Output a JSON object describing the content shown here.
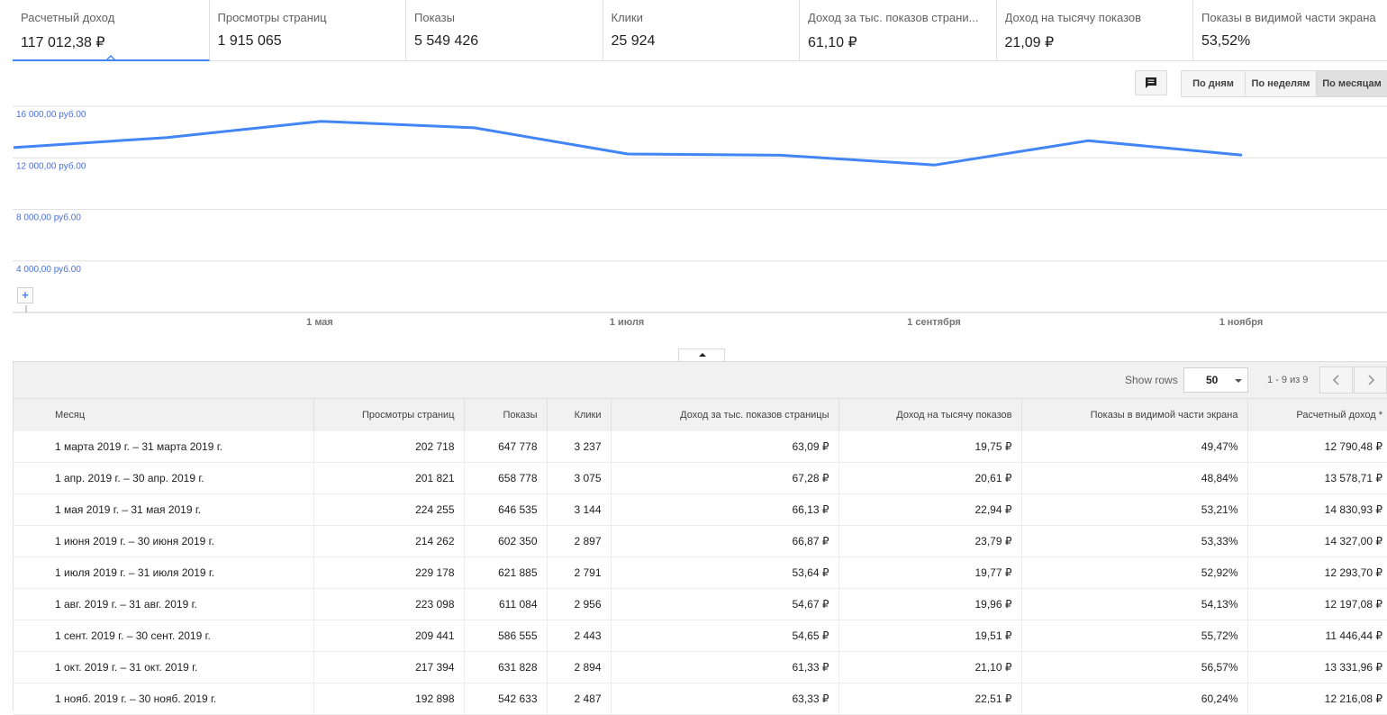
{
  "metrics": [
    {
      "label": "Расчетный доход",
      "value": "117 012,38 ₽",
      "active": true
    },
    {
      "label": "Просмотры страниц",
      "value": "1 915 065"
    },
    {
      "label": "Показы",
      "value": "5 549 426"
    },
    {
      "label": "Клики",
      "value": "25 924"
    },
    {
      "label": "Доход за тыс. показов страни...",
      "value": "61,10 ₽"
    },
    {
      "label": "Доход на тысячу показов",
      "value": "21,09 ₽"
    },
    {
      "label": "Показы в видимой части экрана",
      "value": "53,52%"
    }
  ],
  "controls": {
    "annotation_icon": "comment-icon",
    "period_options": [
      "По дням",
      "По неделям",
      "По месяцам"
    ],
    "selected_period": "По месяцам",
    "zoom_label": "+"
  },
  "chart_data": {
    "type": "line",
    "title": "",
    "xlabel": "",
    "ylabel": "",
    "series_color": "#4285f4",
    "x_labels": [
      "1 мая",
      "1 июля",
      "1 сентября",
      "1 ноября"
    ],
    "y_ticks": [
      "16 000,00 руб.00",
      "12 000,00 руб.00",
      "8 000,00 руб.00",
      "4 000,00 руб.00"
    ],
    "y_tick_values": [
      16000,
      12000,
      8000,
      4000
    ],
    "ylim": [
      0,
      16000
    ],
    "x": [
      "2019-03",
      "2019-04",
      "2019-05",
      "2019-06",
      "2019-07",
      "2019-08",
      "2019-09",
      "2019-10",
      "2019-11"
    ],
    "series": [
      {
        "values": [
          12790.48,
          13578.71,
          14830.93,
          14327.0,
          12293.7,
          12197.08,
          11446.44,
          13331.96,
          12216.08
        ]
      }
    ],
    "grid": true
  },
  "table": {
    "show_rows_label": "Show rows",
    "rows_per_page": "50",
    "range": "1 - 9 из 9",
    "headers": [
      "Месяц",
      "Просмотры страниц",
      "Показы",
      "Клики",
      "Доход за тыс. показов страницы",
      "Доход на тысячу показов",
      "Показы в видимой части экрана",
      "Расчетный доход *"
    ],
    "rows": [
      [
        "1 марта 2019 г. – 31 марта 2019 г.",
        "202 718",
        "647 778",
        "3 237",
        "63,09 ₽",
        "19,75 ₽",
        "49,47%",
        "12 790,48 ₽"
      ],
      [
        "1 апр. 2019 г. – 30 апр. 2019 г.",
        "201 821",
        "658 778",
        "3 075",
        "67,28 ₽",
        "20,61 ₽",
        "48,84%",
        "13 578,71 ₽"
      ],
      [
        "1 мая 2019 г. – 31 мая 2019 г.",
        "224 255",
        "646 535",
        "3 144",
        "66,13 ₽",
        "22,94 ₽",
        "53,21%",
        "14 830,93 ₽"
      ],
      [
        "1 июня 2019 г. – 30 июня 2019 г.",
        "214 262",
        "602 350",
        "2 897",
        "66,87 ₽",
        "23,79 ₽",
        "53,33%",
        "14 327,00 ₽"
      ],
      [
        "1 июля 2019 г. – 31 июля 2019 г.",
        "229 178",
        "621 885",
        "2 791",
        "53,64 ₽",
        "19,77 ₽",
        "52,92%",
        "12 293,70 ₽"
      ],
      [
        "1 авг. 2019 г. – 31 авг. 2019 г.",
        "223 098",
        "611 084",
        "2 956",
        "54,67 ₽",
        "19,96 ₽",
        "54,13%",
        "12 197,08 ₽"
      ],
      [
        "1 сент. 2019 г. – 30 сент. 2019 г.",
        "209 441",
        "586 555",
        "2 443",
        "54,65 ₽",
        "19,51 ₽",
        "55,72%",
        "11 446,44 ₽"
      ],
      [
        "1 окт. 2019 г. – 31 окт. 2019 г.",
        "217 394",
        "631 828",
        "2 894",
        "61,33 ₽",
        "21,10 ₽",
        "56,57%",
        "13 331,96 ₽"
      ],
      [
        "1 нояб. 2019 г. – 30 нояб. 2019 г.",
        "192 898",
        "542 633",
        "2 487",
        "63,33 ₽",
        "22,51 ₽",
        "60,24%",
        "12 216,08 ₽"
      ]
    ]
  }
}
